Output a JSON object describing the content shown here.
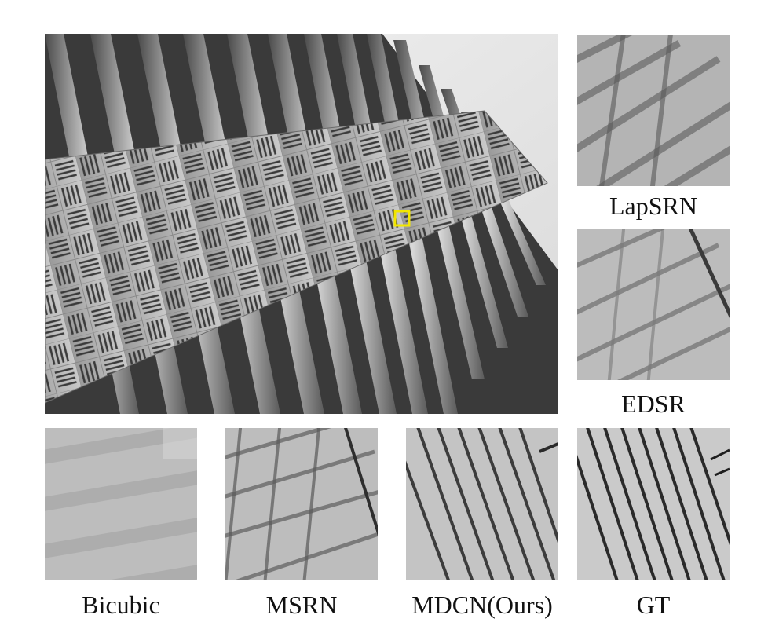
{
  "figure": {
    "main_image": {
      "subject": "building facade (urban scene, grayscale)",
      "roi_marker_color": "#f2e600"
    },
    "crops": [
      {
        "key": "lapsrn",
        "label": "LapSRN"
      },
      {
        "key": "edsr",
        "label": "EDSR"
      },
      {
        "key": "bicubic",
        "label": "Bicubic"
      },
      {
        "key": "msrn",
        "label": "MSRN"
      },
      {
        "key": "mdcn",
        "label": "MDCN(Ours)"
      },
      {
        "key": "gt",
        "label": "GT"
      }
    ]
  }
}
